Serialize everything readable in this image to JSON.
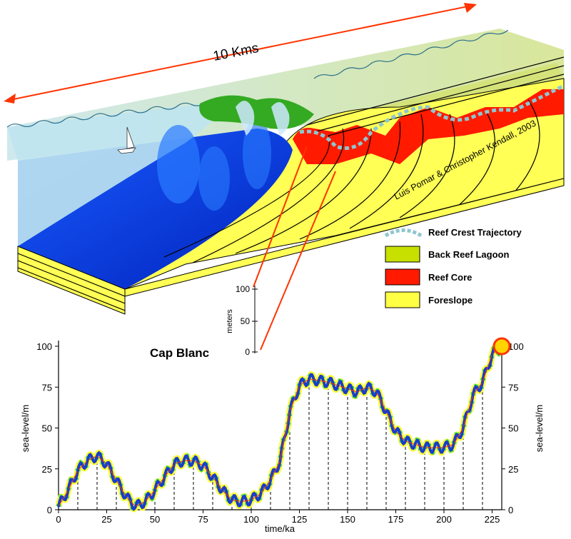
{
  "block_diagram": {
    "scale_label": "10 Kms",
    "credit": "Luis Pomar & Christopher Kendall, 2003",
    "meters_label": "meters",
    "meters_ticks": [
      "100",
      "50",
      "0"
    ]
  },
  "legend": {
    "items": [
      {
        "label": "Reef Crest Trajectory",
        "swatch": "dashed",
        "color": "#8fc6cf"
      },
      {
        "label": "Back Reef Lagoon",
        "swatch": "box",
        "color": "#c8e000"
      },
      {
        "label": "Reef Core",
        "swatch": "box",
        "color": "#ff1a00"
      },
      {
        "label": "Foreslope",
        "swatch": "box",
        "color": "#ffff44"
      }
    ]
  },
  "colors": {
    "ocean_deep": "#0033cc",
    "ocean_light": "#bfe4ef",
    "sand": "#ffff55",
    "lagoon": "#c8e000",
    "reef": "#ff1a00",
    "crest": "#8fc6cf",
    "arrow": "#ff3300",
    "seaboat": "#ffffff"
  },
  "chart_data": {
    "type": "line",
    "title": "Cap Blanc",
    "xlabel": "time/ka",
    "ylabel_left": "sea-level/m",
    "ylabel_right": "sea-level/m",
    "xlim": [
      0,
      230
    ],
    "ylim": [
      0,
      100
    ],
    "xticks": [
      0,
      25,
      50,
      75,
      100,
      125,
      150,
      175,
      200,
      225
    ],
    "yticks": [
      0,
      25,
      50,
      75,
      100
    ],
    "xtick_labels": [
      "0",
      "25",
      "50",
      "75",
      "100",
      "125",
      "150",
      "175",
      "200",
      "225"
    ],
    "ytick_labels": [
      "0",
      "25",
      "50",
      "75",
      "100"
    ],
    "grid": false,
    "dashed_verticals_x": [
      10,
      20,
      30,
      40,
      50,
      60,
      70,
      80,
      90,
      100,
      110,
      120,
      130,
      140,
      150,
      160,
      170,
      180,
      190,
      200,
      210,
      220
    ],
    "series": [
      {
        "x": [
          0,
          5,
          10,
          15,
          20,
          25,
          30,
          35,
          40,
          45,
          50,
          55,
          60,
          65,
          70,
          75,
          80,
          85,
          90,
          95,
          100,
          105,
          110,
          115,
          120,
          125,
          130,
          135,
          140,
          145,
          150,
          155,
          160,
          165,
          170,
          175,
          180,
          185,
          190,
          195,
          200,
          205,
          210,
          215,
          220,
          225,
          230
        ],
        "y": [
          2,
          12,
          24,
          30,
          33,
          28,
          18,
          8,
          2,
          5,
          12,
          20,
          28,
          30,
          30,
          27,
          20,
          12,
          6,
          5,
          6,
          10,
          18,
          30,
          60,
          76,
          80,
          79,
          78,
          76,
          74,
          72,
          75,
          72,
          60,
          48,
          42,
          40,
          38,
          38,
          38,
          40,
          50,
          70,
          78,
          95,
          100
        ]
      }
    ],
    "end_marker": {
      "x": 230,
      "y": 100
    }
  }
}
